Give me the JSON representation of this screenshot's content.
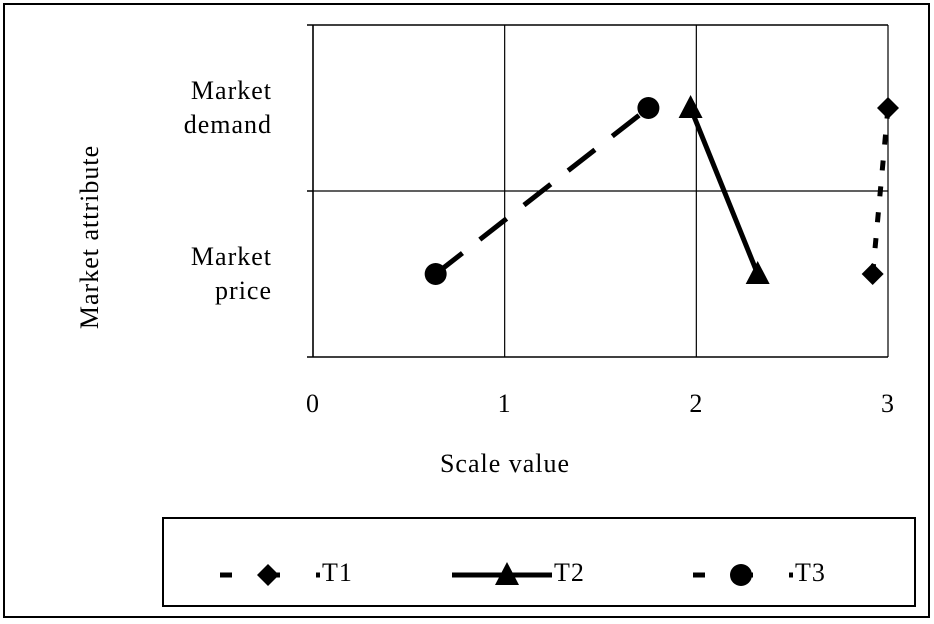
{
  "chart_data": {
    "type": "line",
    "orientation": "horizontal",
    "xlabel": "Scale value",
    "ylabel": "Market attribute",
    "categories": [
      "Market price",
      "Market demand"
    ],
    "xlim": [
      0,
      3
    ],
    "xticks": [
      0,
      1,
      2,
      3
    ],
    "grid": true,
    "series": [
      {
        "name": "T1",
        "color": "#000000",
        "dash": "dotted",
        "marker": "diamond",
        "values": [
          2.92,
          3.0
        ]
      },
      {
        "name": "T2",
        "color": "#000000",
        "dash": "solid",
        "marker": "triangle",
        "values": [
          2.32,
          1.97
        ]
      },
      {
        "name": "T3",
        "color": "#000000",
        "dash": "dashed",
        "marker": "circle",
        "values": [
          0.64,
          1.75
        ]
      }
    ]
  }
}
